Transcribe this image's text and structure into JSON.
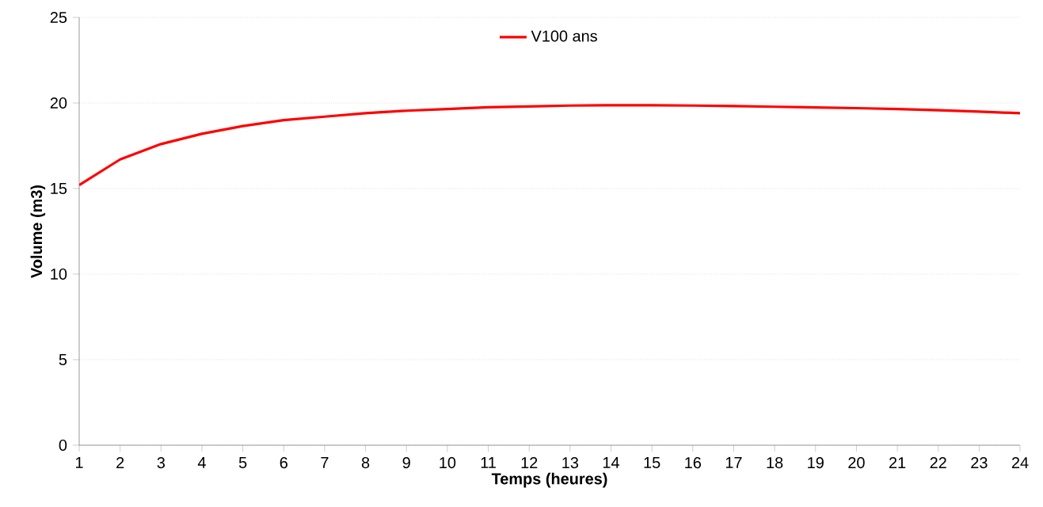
{
  "chart_data": {
    "type": "line",
    "xlabel": "Temps (heures)",
    "ylabel": "Volume (m3)",
    "x": [
      1,
      2,
      3,
      4,
      5,
      6,
      7,
      8,
      9,
      10,
      11,
      12,
      13,
      14,
      15,
      16,
      17,
      18,
      19,
      20,
      21,
      22,
      23,
      24
    ],
    "series": [
      {
        "name": "V100 ans",
        "color": "#ff0000",
        "values": [
          15.2,
          16.7,
          17.6,
          18.2,
          18.65,
          19.0,
          19.2,
          19.4,
          19.55,
          19.65,
          19.75,
          19.8,
          19.85,
          19.87,
          19.87,
          19.85,
          19.82,
          19.78,
          19.74,
          19.7,
          19.65,
          19.58,
          19.5,
          19.4
        ]
      }
    ],
    "xlim": [
      1,
      24
    ],
    "xticks": [
      1,
      2,
      3,
      4,
      5,
      6,
      7,
      8,
      9,
      10,
      11,
      12,
      13,
      14,
      15,
      16,
      17,
      18,
      19,
      20,
      21,
      22,
      23,
      24
    ],
    "ylim": [
      0,
      25
    ],
    "yticks": [
      0,
      5,
      10,
      15,
      20,
      25
    ],
    "grid": "y",
    "legend": "top",
    "marker": "none",
    "line_style": "solid"
  }
}
